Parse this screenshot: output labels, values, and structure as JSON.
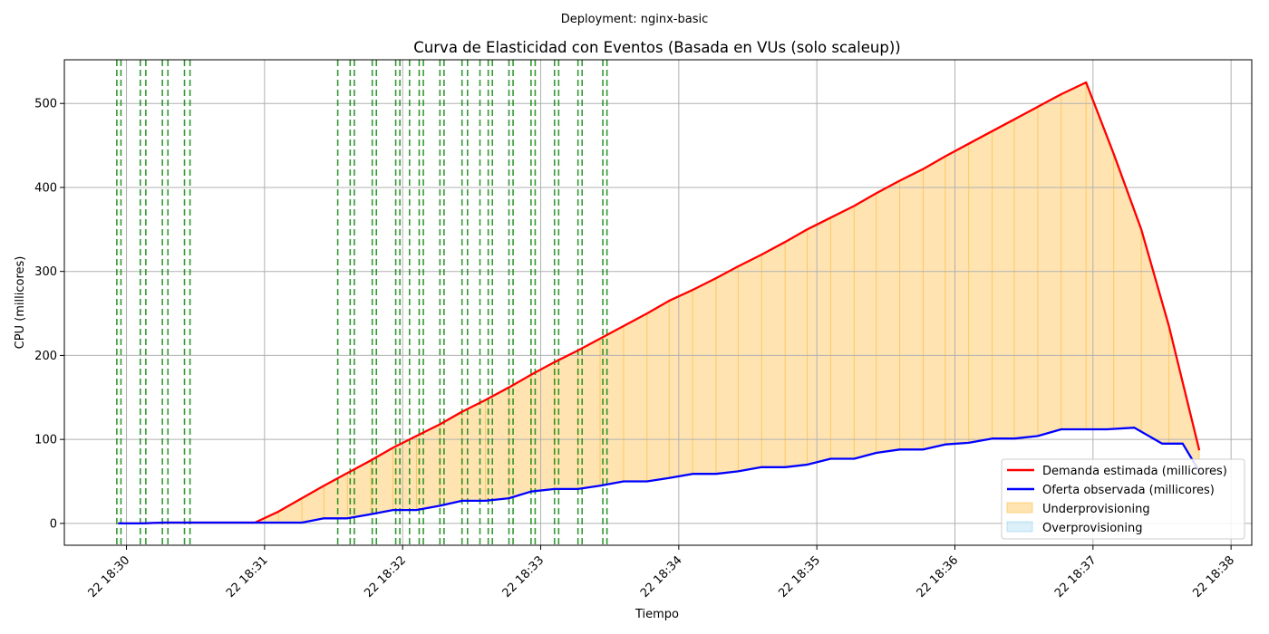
{
  "suptitle": "Deployment: nginx-basic",
  "chart_data": {
    "type": "line",
    "title": "Curva de Elasticidad con Eventos (Basada en VUs (solo scaleup))",
    "xlabel": "Tiempo",
    "ylabel": "CPU (millicores)",
    "xlim_minutes": [
      29.55,
      38.15
    ],
    "ylim": [
      -26,
      552
    ],
    "x_ticks": [
      {
        "minute": 30,
        "label": "22 18:30"
      },
      {
        "minute": 31,
        "label": "22 18:31"
      },
      {
        "minute": 32,
        "label": "22 18:32"
      },
      {
        "minute": 33,
        "label": "22 18:33"
      },
      {
        "minute": 34,
        "label": "22 18:34"
      },
      {
        "minute": 35,
        "label": "22 18:35"
      },
      {
        "minute": 36,
        "label": "22 18:36"
      },
      {
        "minute": 37,
        "label": "22 18:37"
      },
      {
        "minute": 38,
        "label": "22 18:38"
      }
    ],
    "y_ticks": [
      0,
      100,
      200,
      300,
      400,
      500
    ],
    "grid": true,
    "legend_position": "bottom-right",
    "series": [
      {
        "name": "Demanda estimada (millicores)",
        "color": "#ff0000",
        "x": [
          29.94,
          30.1,
          30.27,
          30.43,
          30.6,
          30.77,
          30.93,
          31.1,
          31.27,
          31.43,
          31.6,
          31.77,
          31.93,
          32.1,
          32.27,
          32.43,
          32.6,
          32.77,
          32.93,
          33.1,
          33.27,
          33.43,
          33.6,
          33.77,
          33.93,
          34.1,
          34.27,
          34.43,
          34.6,
          34.77,
          34.93,
          35.1,
          35.27,
          35.43,
          35.6,
          35.77,
          35.93,
          36.1,
          36.27,
          36.43,
          36.6,
          36.77,
          36.95,
          37.15,
          37.35,
          37.55,
          37.77
        ],
        "values": [
          0,
          0,
          1,
          1,
          1,
          1,
          1,
          14,
          30,
          45,
          60,
          75,
          90,
          104,
          118,
          133,
          147,
          162,
          177,
          192,
          206,
          220,
          235,
          250,
          265,
          278,
          292,
          306,
          320,
          335,
          350,
          364,
          378,
          393,
          408,
          422,
          437,
          452,
          467,
          481,
          496,
          511,
          525,
          440,
          350,
          235,
          87
        ]
      },
      {
        "name": "Oferta observada (millicores)",
        "color": "#0000ff",
        "x": [
          29.94,
          30.1,
          30.27,
          30.43,
          30.6,
          30.77,
          30.93,
          31.1,
          31.27,
          31.43,
          31.6,
          31.77,
          31.93,
          32.1,
          32.27,
          32.43,
          32.6,
          32.77,
          32.93,
          33.1,
          33.27,
          33.43,
          33.6,
          33.77,
          33.93,
          34.1,
          34.27,
          34.43,
          34.6,
          34.77,
          34.93,
          35.1,
          35.27,
          35.43,
          35.6,
          35.77,
          35.93,
          36.1,
          36.27,
          36.43,
          36.6,
          36.77,
          36.93,
          37.1,
          37.3,
          37.5,
          37.65,
          37.77
        ],
        "values": [
          0,
          0,
          1,
          1,
          1,
          1,
          1,
          1,
          1,
          6,
          6,
          11,
          16,
          16,
          21,
          27,
          27,
          30,
          38,
          41,
          41,
          45,
          50,
          50,
          54,
          59,
          59,
          62,
          67,
          67,
          70,
          77,
          77,
          84,
          88,
          88,
          94,
          96,
          101,
          101,
          104,
          112,
          112,
          112,
          114,
          95,
          95,
          62
        ]
      }
    ],
    "fills": [
      {
        "name": "Underprovisioning",
        "color": "#ffa500",
        "opacity": 0.3
      },
      {
        "name": "Overprovisioning",
        "color": "#87ceeb",
        "opacity": 0.3
      }
    ],
    "event_lines": {
      "color": "#008000",
      "style": "dashed",
      "x": [
        29.93,
        29.96,
        30.1,
        30.14,
        30.26,
        30.3,
        30.42,
        30.46,
        31.53,
        31.62,
        31.65,
        31.78,
        31.81,
        31.95,
        31.98,
        32.05,
        32.12,
        32.15,
        32.27,
        32.3,
        32.43,
        32.47,
        32.56,
        32.62,
        32.65,
        32.77,
        32.8,
        32.93,
        32.96,
        33.1,
        33.13,
        33.27,
        33.3,
        33.45,
        33.48
      ]
    }
  }
}
